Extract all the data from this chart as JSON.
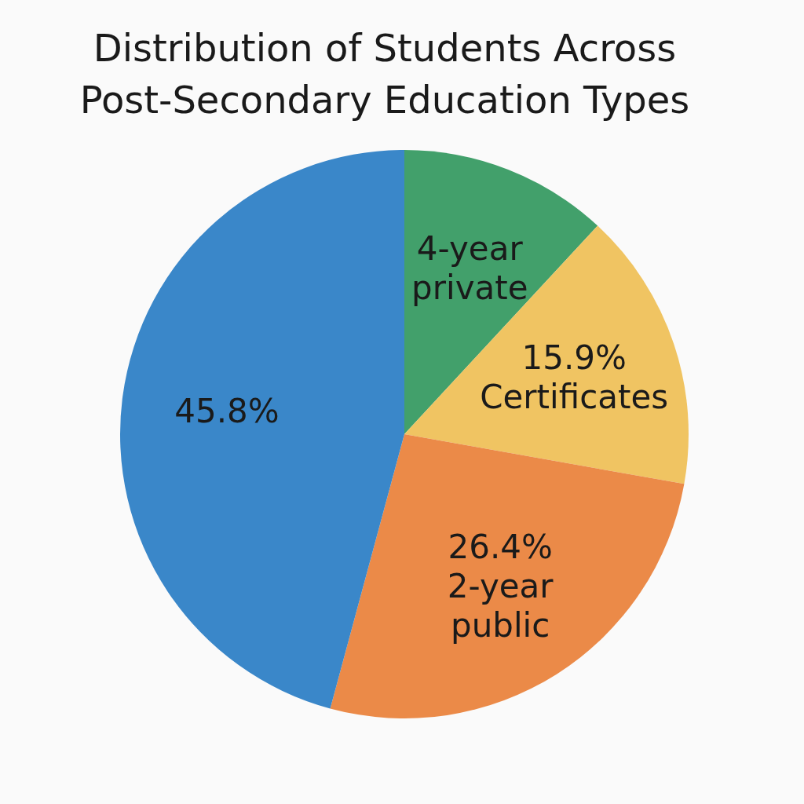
{
  "chart_data": {
    "type": "pie",
    "title": "Distribution of Students Across Post-Secondary Education Types",
    "categories": [
      "4-year private",
      "Certificates",
      "2-year public",
      null
    ],
    "values": [
      11.9,
      15.9,
      26.4,
      45.8
    ],
    "colors": [
      "#42a06b",
      "#f0c462",
      "#eb8a48",
      "#3a87c9"
    ],
    "value_labels": [
      null,
      "15.9%",
      "26.4%",
      "45.8%"
    ]
  }
}
